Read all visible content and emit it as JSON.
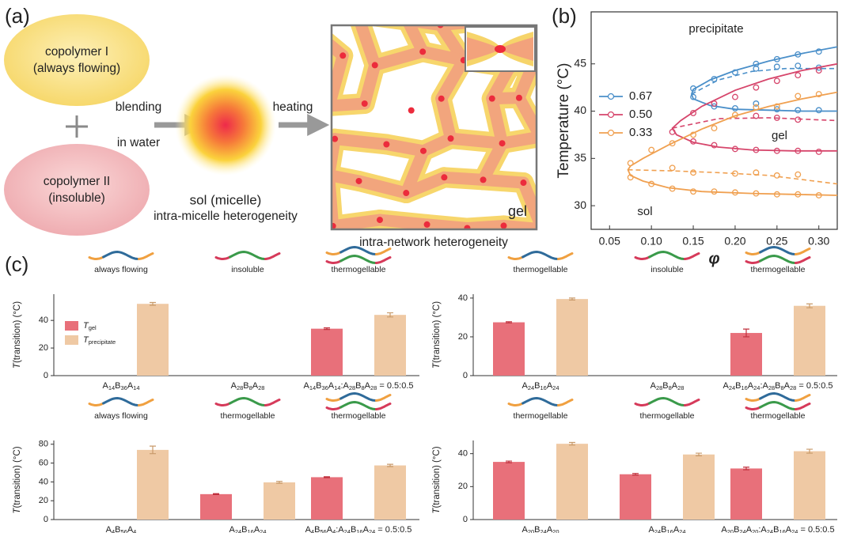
{
  "panel_labels": [
    "(a)",
    "(b)",
    "(c)"
  ],
  "diagram": {
    "copolymer_1": [
      "copolymer I",
      "(always flowing)"
    ],
    "copolymer_2": [
      "copolymer II",
      "(insoluble)"
    ],
    "step_1": [
      "blending",
      "in water"
    ],
    "step_2": "heating",
    "sol": [
      "sol (micelle)",
      "intra-micelle heterogeneity"
    ],
    "gel": "gel",
    "network": "intra-network heterogeneity"
  },
  "chart_data": [
    {
      "type": "scatter",
      "xlabel": "φ",
      "ylabel": "Temperature (°C)",
      "xlim": [
        0.028,
        0.322
      ],
      "ylim": [
        27.5,
        50.5
      ],
      "xticks": [
        0.05,
        {
          "value": 0.1,
          "label": "0.10"
        },
        0.15,
        {
          "value": 0.2,
          "label": "0.20"
        },
        0.25,
        {
          "value": 0.3,
          "label": "0.30"
        }
      ],
      "yticks": [
        30,
        35,
        40,
        45
      ],
      "legend": "left",
      "annotations": [
        "precipitate",
        "gel",
        "sol"
      ],
      "series": [
        {
          "name": "0.67",
          "color": "#4a8fc9",
          "x": [
            0.15,
            0.175,
            0.2,
            0.225,
            0.25,
            0.275,
            0.3,
            0.15,
            0.175,
            0.2,
            0.225,
            0.25,
            0.275,
            0.3,
            0.225,
            0.25,
            0.275,
            0.3
          ],
          "y": [
            42.4,
            43.4,
            44.1,
            45,
            45.5,
            46,
            46.3,
            41.5,
            40.5,
            40.3,
            40.8,
            40.2,
            40.1,
            40.1,
            44.5,
            44.7,
            44.8,
            44.6
          ],
          "fit_x": [
            0.322,
            0.28,
            0.24,
            0.2,
            0.17,
            0.15,
            0.148,
            0.15,
            0.17,
            0.2,
            0.24,
            0.28,
            0.322
          ],
          "fit_y": [
            46.8,
            46.1,
            45.3,
            44.3,
            43.3,
            42.3,
            41.8,
            41.3,
            40.6,
            40.2,
            40.1,
            40.0,
            40.0
          ],
          "dash_x": [
            0.148,
            0.18,
            0.22,
            0.26,
            0.3,
            0.322
          ],
          "dash_y": [
            41.8,
            43.3,
            44.2,
            44.5,
            44.5,
            44.5
          ]
        },
        {
          "name": "0.50",
          "color": "#d6456b",
          "x": [
            0.15,
            0.175,
            0.2,
            0.225,
            0.25,
            0.275,
            0.3,
            0.125,
            0.15,
            0.175,
            0.2,
            0.225,
            0.25,
            0.275,
            0.3,
            0.225,
            0.25,
            0.275
          ],
          "y": [
            39.8,
            40.8,
            41.5,
            42.5,
            43.2,
            43.8,
            44.3,
            37.8,
            36.8,
            36.4,
            36,
            35.9,
            35.8,
            35.8,
            35.7,
            39.5,
            39.3,
            39.1
          ],
          "fit_x": [
            0.322,
            0.28,
            0.24,
            0.2,
            0.16,
            0.135,
            0.125,
            0.13,
            0.15,
            0.18,
            0.22,
            0.27,
            0.322
          ],
          "fit_y": [
            45,
            44.3,
            43.4,
            42.2,
            40.5,
            39,
            38.2,
            37.5,
            36.7,
            36.2,
            35.9,
            35.8,
            35.8
          ],
          "dash_x": [
            0.125,
            0.18,
            0.24,
            0.322
          ],
          "dash_y": [
            38.2,
            39.2,
            39.3,
            39.0
          ]
        },
        {
          "name": "0.33",
          "color": "#f0a050",
          "x": [
            0.075,
            0.1,
            0.125,
            0.15,
            0.175,
            0.2,
            0.225,
            0.25,
            0.275,
            0.3,
            0.075,
            0.1,
            0.125,
            0.15,
            0.175,
            0.2,
            0.225,
            0.25,
            0.275,
            0.3,
            0.125,
            0.15,
            0.2,
            0.225,
            0.25,
            0.275
          ],
          "y": [
            34.5,
            35.9,
            36.6,
            37.5,
            38.2,
            39.6,
            40.4,
            40.5,
            41.6,
            41.8,
            33,
            32.3,
            31.8,
            31.5,
            31.5,
            31.4,
            31.3,
            31.2,
            31.2,
            31.1,
            34,
            33.5,
            33.4,
            33.5,
            33.2,
            33.3
          ],
          "fit_x": [
            0.322,
            0.28,
            0.24,
            0.2,
            0.16,
            0.12,
            0.09,
            0.075,
            0.072,
            0.075,
            0.09,
            0.12,
            0.16,
            0.22,
            0.27,
            0.322
          ],
          "fit_y": [
            42,
            41.3,
            40.5,
            39.5,
            38.1,
            36.4,
            35,
            34.2,
            33.8,
            33.2,
            32.6,
            31.9,
            31.5,
            31.3,
            31.2,
            31.1
          ],
          "dash_x": [
            0.072,
            0.12,
            0.18,
            0.24,
            0.322
          ],
          "dash_y": [
            33.8,
            33.7,
            33.5,
            33.2,
            32.3
          ]
        }
      ]
    },
    {
      "type": "bar",
      "ylabel": "T(transition) (°C)",
      "categories": [
        "A14B36A14",
        "A28B8A28",
        "A14B36A14:A28B8A28 = 0.5:0.5"
      ],
      "category_notes": [
        "always flowing",
        "insoluble",
        "thermogellable"
      ],
      "ylim": [
        0,
        59
      ],
      "yticks": [
        0,
        20,
        40
      ],
      "legend": "upper left",
      "series": [
        {
          "name": "Tgel",
          "color": "#e8707a",
          "values": [
            null,
            null,
            34
          ],
          "errors": [
            null,
            null,
            0.6
          ]
        },
        {
          "name": "Tprecipitate",
          "color": "#efc9a4",
          "values": [
            52,
            null,
            44
          ],
          "errors": [
            1,
            null,
            1.5
          ]
        }
      ]
    },
    {
      "type": "bar",
      "ylabel": "T(transition) (°C)",
      "categories": [
        "A24B16A24",
        "A28B8A28",
        "A24B16A24:A28B8A28 = 0.5:0.5"
      ],
      "category_notes": [
        "thermogellable",
        "insoluble",
        "thermogellable"
      ],
      "ylim": [
        0,
        42
      ],
      "yticks": [
        0,
        20,
        40
      ],
      "series": [
        {
          "color": "#e8707a",
          "values": [
            27.5,
            null,
            22
          ],
          "errors": [
            0.3,
            null,
            2
          ]
        },
        {
          "color": "#efc9a4",
          "values": [
            39.5,
            null,
            36
          ],
          "errors": [
            0.5,
            null,
            1
          ]
        }
      ]
    },
    {
      "type": "bar",
      "ylabel": "T(transition) (°C)",
      "categories": [
        "A4B56A4",
        "A24B16A24",
        "A4B56A4:A24B16A24 = 0.5:0.5"
      ],
      "category_notes": [
        "always flowing",
        "thermogellable",
        "thermogellable"
      ],
      "ylim": [
        0,
        84
      ],
      "yticks": [
        0,
        20,
        40,
        60,
        80
      ],
      "series": [
        {
          "color": "#e8707a",
          "values": [
            null,
            27,
            45
          ],
          "errors": [
            null,
            0.5,
            0.5
          ]
        },
        {
          "color": "#efc9a4",
          "values": [
            74,
            39.5,
            57.5
          ],
          "errors": [
            4,
            1,
            1.2
          ]
        }
      ]
    },
    {
      "type": "bar",
      "ylabel": "T(transition) (°C)",
      "categories": [
        "A20B24A20",
        "A24B16A24",
        "A20B24A20:A24B16A24 = 0.5:0.5"
      ],
      "category_notes": [
        "thermogellable",
        "thermogellable",
        "thermogellable"
      ],
      "ylim": [
        0,
        48
      ],
      "yticks": [
        0,
        20,
        40
      ],
      "series": [
        {
          "color": "#e8707a",
          "values": [
            35,
            27.5,
            31
          ],
          "errors": [
            0.5,
            0.5,
            0.8
          ]
        },
        {
          "color": "#efc9a4",
          "values": [
            46,
            39.5,
            41.5
          ],
          "errors": [
            0.8,
            0.8,
            1.2
          ]
        }
      ]
    }
  ]
}
